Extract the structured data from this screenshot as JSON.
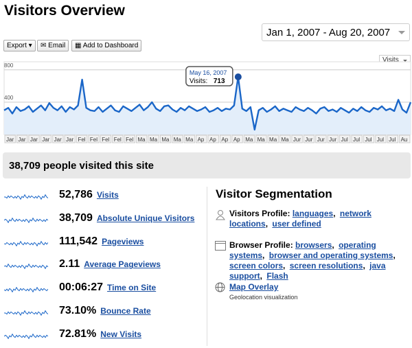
{
  "header": {
    "title": "Visitors Overview",
    "date_range": "Jan 1, 2007 - Aug 20, 2007"
  },
  "toolbar": {
    "buttons": [
      "Export",
      "Email",
      "Add to Dashboard"
    ],
    "metric_select": "Visits"
  },
  "chart_data": {
    "type": "line",
    "color": "#1a66c8",
    "fill": "#e3eefa",
    "grid": true,
    "ylim": [
      0,
      900
    ],
    "yticks": [
      400,
      800
    ],
    "x_labels": [
      "Jar",
      "Jar",
      "Jar",
      "Jar",
      "Jar",
      "Jar",
      "Fel",
      "Fel",
      "Fel",
      "Fel",
      "Fel",
      "Ma",
      "Ma",
      "Ma",
      "Ma",
      "Ma",
      "Ap",
      "Ap",
      "Ap",
      "Ap",
      "Ma",
      "Ma",
      "Ma",
      "Ma",
      "Jur",
      "Jur",
      "Jur",
      "Jur",
      "Jul",
      "Jul",
      "Jul",
      "Jul",
      "Jul",
      "Au"
    ],
    "values": [
      300,
      330,
      260,
      340,
      290,
      310,
      350,
      280,
      320,
      360,
      300,
      390,
      330,
      300,
      350,
      280,
      340,
      310,
      360,
      680,
      330,
      300,
      290,
      340,
      280,
      320,
      360,
      300,
      280,
      350,
      320,
      290,
      330,
      370,
      300,
      340,
      400,
      320,
      290,
      350,
      360,
      310,
      280,
      330,
      300,
      350,
      320,
      290,
      310,
      340,
      280,
      300,
      330,
      290,
      320,
      310,
      360,
      713,
      320,
      290,
      340,
      60,
      300,
      330,
      280,
      310,
      350,
      290,
      320,
      300,
      280,
      340,
      310,
      290,
      330,
      300,
      260,
      320,
      340,
      290,
      310,
      280,
      330,
      300,
      270,
      320,
      290,
      340,
      300,
      280,
      330,
      310,
      350,
      300,
      320,
      290,
      430,
      310,
      270,
      400
    ],
    "tooltip": {
      "index": 57,
      "date": "May 16, 2007",
      "label": "Visits:"
    }
  },
  "summary": "38,709 people visited this site",
  "metrics": [
    {
      "value": "52,786",
      "label": "Visits"
    },
    {
      "value": "38,709",
      "label": "Absolute Unique Visitors"
    },
    {
      "value": "111,542",
      "label": "Pageviews"
    },
    {
      "value": "2.11",
      "label": "Average Pageviews"
    },
    {
      "value": "00:06:27",
      "label": "Time on Site"
    },
    {
      "value": "73.10%",
      "label": "Bounce Rate"
    },
    {
      "value": "72.81%",
      "label": "New Visits"
    }
  ],
  "segmentation": {
    "title": "Visitor Segmentation",
    "items": [
      {
        "label": "Visitors Profile:",
        "links": [
          "languages",
          "network locations",
          "user defined"
        ]
      },
      {
        "label": "Browser Profile:",
        "links": [
          "browsers",
          "operating systems",
          "browser and operating systems",
          "screen colors",
          "screen resolutions",
          "java support",
          "Flash"
        ]
      },
      {
        "label": "Map Overlay",
        "note": "Geolocation visualization"
      }
    ]
  }
}
